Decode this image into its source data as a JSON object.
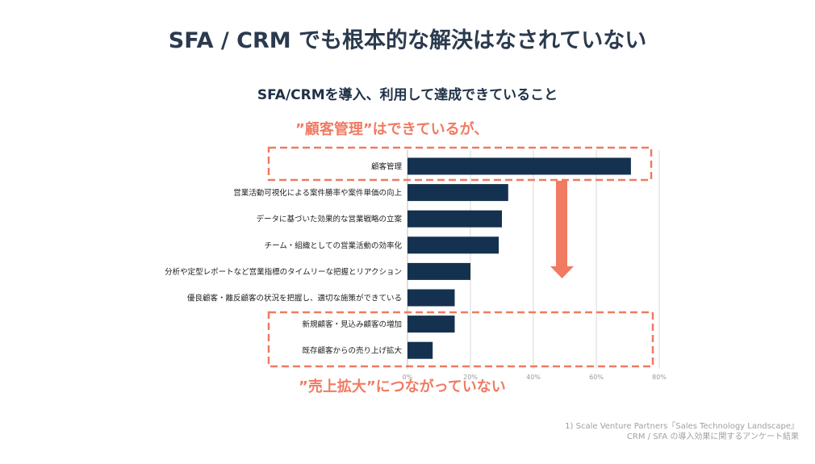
{
  "header": {
    "title": "SFA / CRM でも根本的な解決はなされていない",
    "subtitle": "SFA/CRMを導入、利用して達成できていること"
  },
  "callouts": {
    "top": "”顧客管理”はできているが、",
    "bottom": "”売上拡大”につながっていない"
  },
  "footnote": {
    "line1": "1) Scale Venture Partners『Sales Technology Landscape』",
    "line2": "CRM / SFA の導入効果に関するアンケート結果"
  },
  "colors": {
    "bar": "#14324f",
    "accent": "#f07a62",
    "grid": "#d9d9d9"
  },
  "chart_data": {
    "type": "bar",
    "orientation": "horizontal",
    "categories": [
      "顧客管理",
      "営業活動可視化による案件勝率や案件単価の向上",
      "データに基づいた効果的な営業戦略の立案",
      "チーム・組織としての営業活動の効率化",
      "分析や定型レポートなど営業指標のタイムリーな把握とリアクション",
      "優良顧客・離反顧客の状況を把握し、適切な施策ができている",
      "新規顧客・見込み顧客の増加",
      "既存顧客からの売り上げ拡大"
    ],
    "values": [
      71,
      32,
      30,
      29,
      20,
      15,
      15,
      8
    ],
    "xlim": [
      0,
      80
    ],
    "xticks": [
      0,
      20,
      40,
      60,
      80
    ],
    "xtick_labels": [
      "0%",
      "20%",
      "40%",
      "60%",
      "80%"
    ],
    "grid": true,
    "highlight_top": [
      0
    ],
    "highlight_bottom": [
      6,
      7
    ]
  }
}
